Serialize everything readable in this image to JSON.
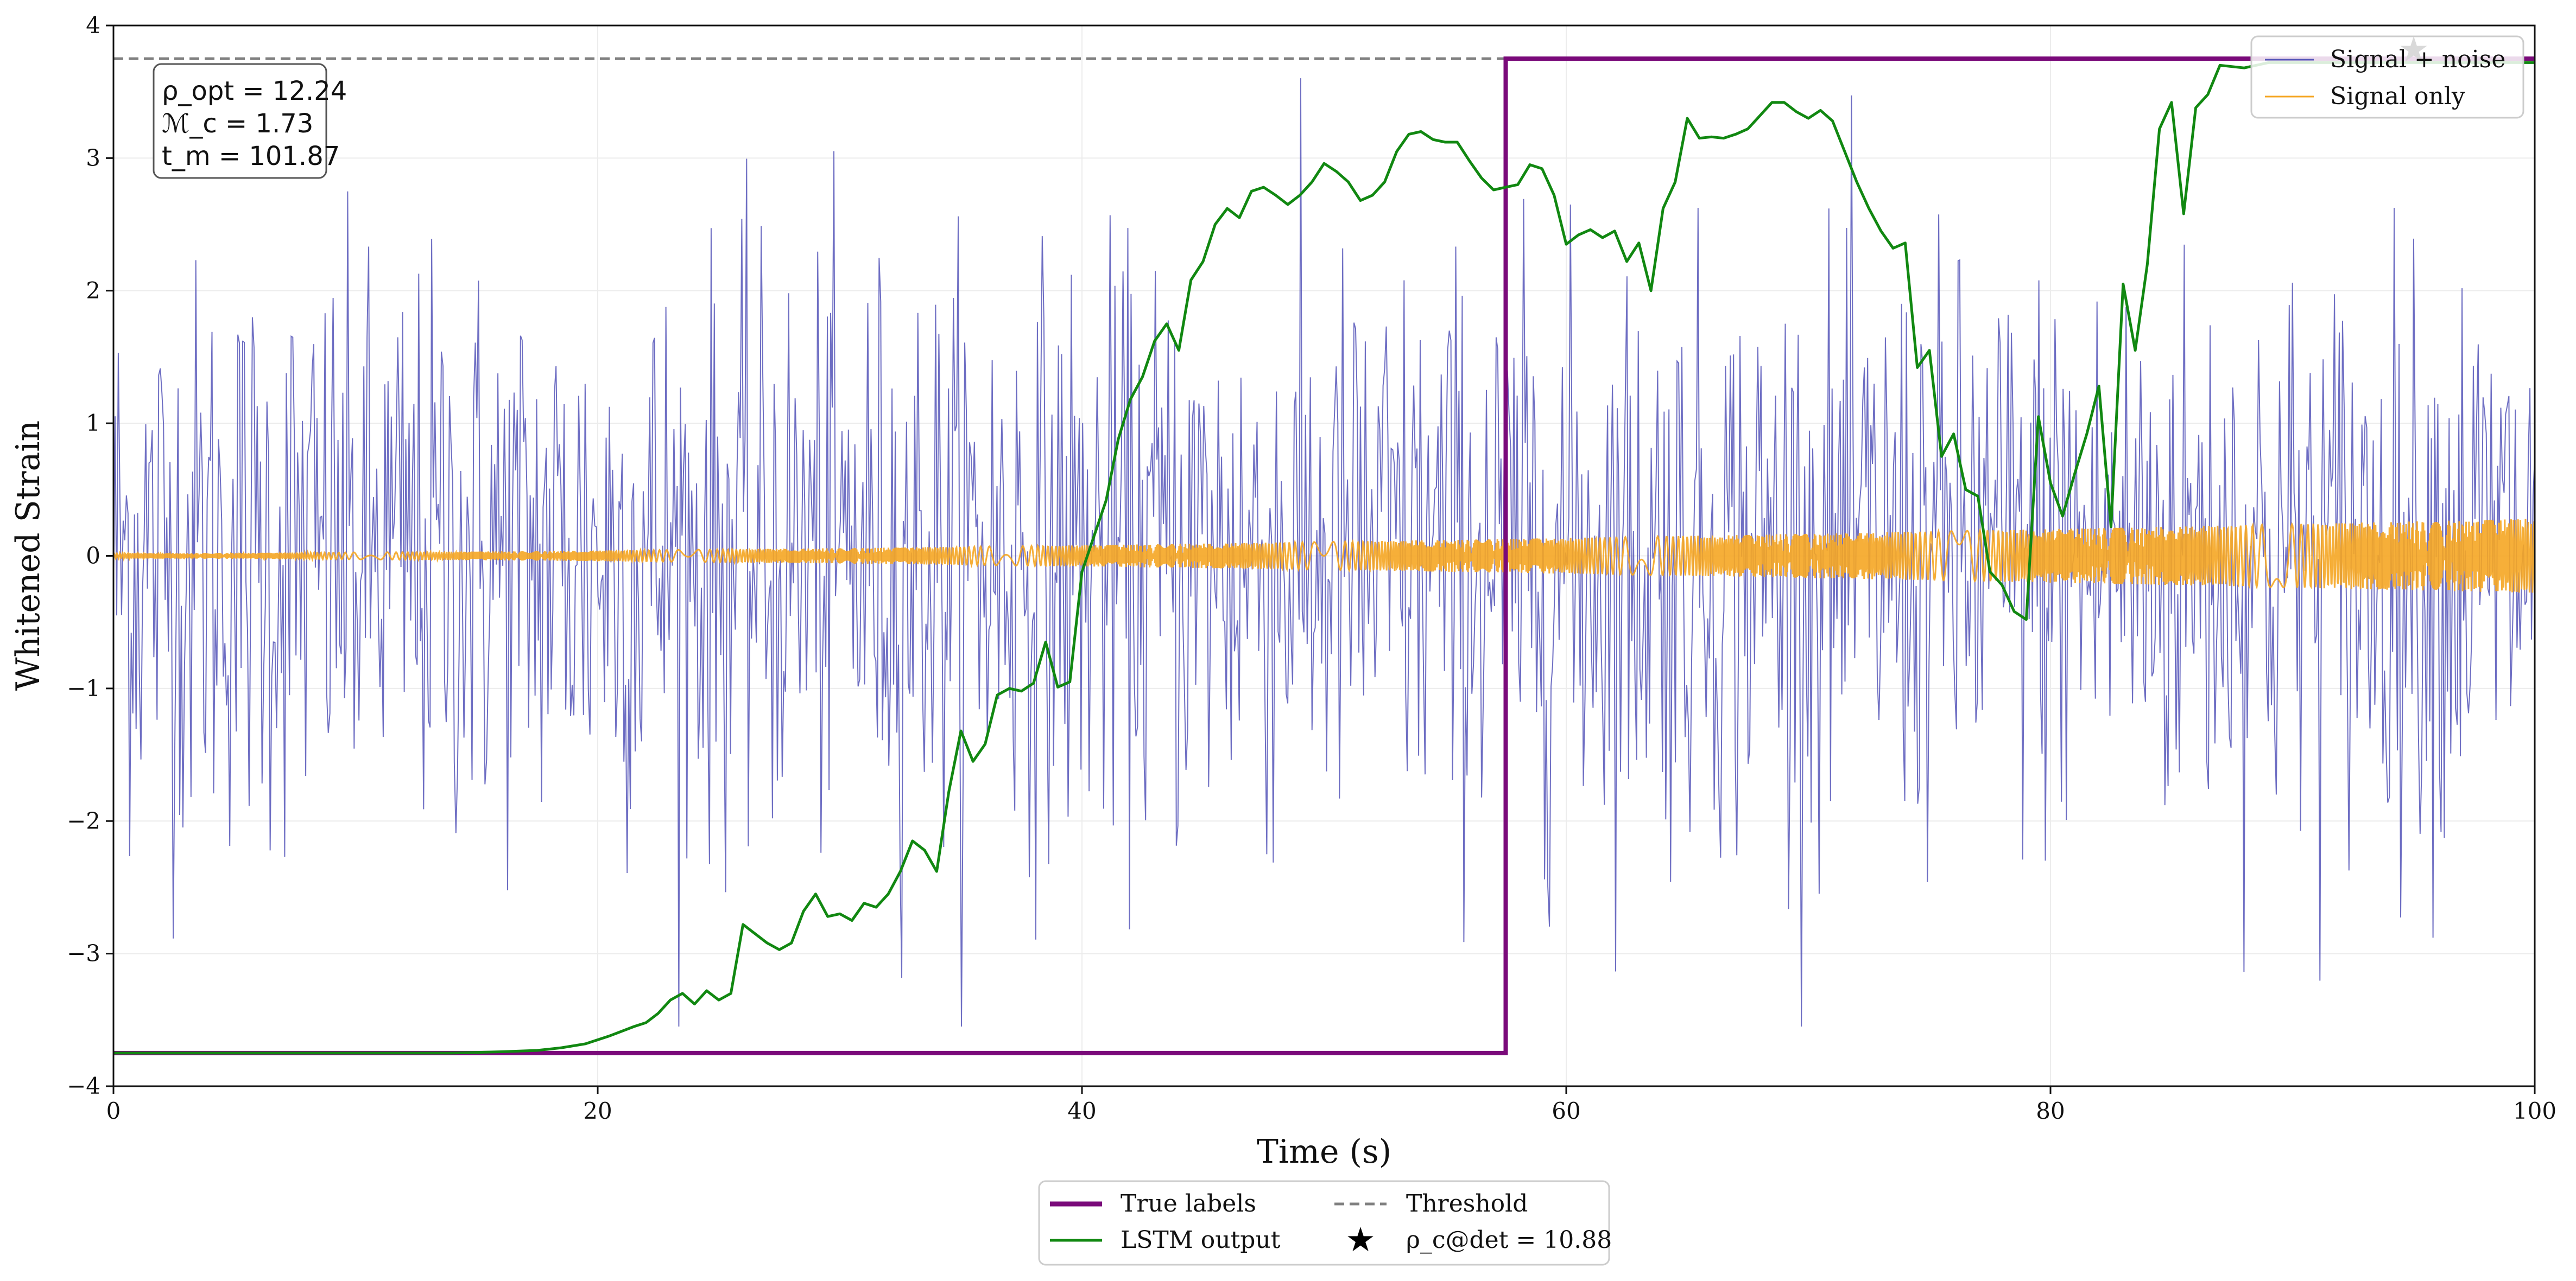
{
  "chart_data": {
    "type": "line",
    "title": "",
    "xlabel": "Time (s)",
    "ylabel": "Whitened Strain",
    "xlim": [
      0,
      100
    ],
    "ylim": [
      -4,
      4
    ],
    "xticks": [
      0,
      20,
      40,
      60,
      80,
      100
    ],
    "yticks": [
      -4,
      -3,
      -2,
      -1,
      0,
      1,
      2,
      3,
      4
    ],
    "ytick_labels": [
      "−4",
      "−3",
      "−2",
      "−1",
      "0",
      "1",
      "2",
      "3",
      "4"
    ],
    "grid": true,
    "colors": {
      "signal_noise": "#5555b8",
      "signal_only": "#f5a623",
      "true_labels": "#7a0a7a",
      "lstm": "#118811",
      "threshold": "#808080",
      "marker": "#000000"
    },
    "series": [
      {
        "name": "Signal + noise",
        "style": "thin line, dense noise",
        "noise_amplitude": 1.1,
        "peak_min": -3.55,
        "peak_max": 3.75,
        "n_samples": 1500
      },
      {
        "name": "Signal only",
        "style": "chirp, amplitude growing with time",
        "amplitude_start": 0.02,
        "amplitude_end": 0.28
      },
      {
        "name": "True labels",
        "x": [
          0,
          57.5,
          57.5,
          100
        ],
        "y": [
          -3.75,
          -3.75,
          3.75,
          3.75
        ]
      },
      {
        "name": "LSTM output",
        "x": [
          0,
          14,
          16,
          17.5,
          18.5,
          19.5,
          20.5,
          21.5,
          22,
          22.5,
          23,
          23.5,
          24,
          24.5,
          25,
          25.5,
          26,
          26.5,
          27,
          27.5,
          28,
          28.5,
          29,
          29.5,
          30,
          30.5,
          31,
          31.5,
          32,
          32.5,
          33,
          33.5,
          34,
          34.5,
          35,
          35.5,
          36,
          36.5,
          37,
          37.5,
          38,
          38.5,
          39,
          39.5,
          40,
          40.5,
          41,
          41.5,
          42,
          42.5,
          43,
          43.5,
          44,
          44.5,
          45,
          45.5,
          46,
          46.5,
          47,
          47.5,
          48,
          48.5,
          49,
          49.5,
          50,
          50.5,
          51,
          51.5,
          52,
          52.5,
          53,
          53.5,
          54,
          54.5,
          55,
          55.5,
          56,
          56.5,
          57,
          57.5,
          58,
          58.5,
          59,
          59.5,
          60,
          60.5,
          61,
          61.5,
          62,
          62.5,
          63,
          63.5,
          64,
          64.5,
          65,
          65.5,
          66,
          66.5,
          67,
          67.5,
          68,
          68.5,
          69,
          69.5,
          70,
          70.5,
          71,
          71.5,
          72,
          72.5,
          73,
          73.5,
          74,
          74.5,
          75,
          75.5,
          76,
          76.5,
          77,
          77.5,
          78,
          78.5,
          79,
          79.5,
          80,
          80.5,
          81,
          81.5,
          82,
          82.5,
          83,
          83.5,
          84,
          84.5,
          85,
          85.5,
          86,
          86.5,
          87,
          88,
          89,
          90,
          95,
          100
        ],
        "y": [
          -3.75,
          -3.75,
          -3.74,
          -3.73,
          -3.71,
          -3.68,
          -3.62,
          -3.55,
          -3.52,
          -3.45,
          -3.35,
          -3.3,
          -3.38,
          -3.28,
          -3.35,
          -3.3,
          -2.78,
          -2.85,
          -2.92,
          -2.97,
          -2.92,
          -2.68,
          -2.55,
          -2.72,
          -2.7,
          -2.75,
          -2.62,
          -2.65,
          -2.55,
          -2.38,
          -2.15,
          -2.22,
          -2.38,
          -1.78,
          -1.32,
          -1.55,
          -1.42,
          -1.05,
          -1.0,
          -1.02,
          -0.96,
          -0.65,
          -0.99,
          -0.95,
          -0.12,
          0.15,
          0.42,
          0.88,
          1.18,
          1.35,
          1.62,
          1.75,
          1.55,
          2.08,
          2.22,
          2.5,
          2.62,
          2.55,
          2.75,
          2.78,
          2.72,
          2.65,
          2.72,
          2.82,
          2.96,
          2.9,
          2.82,
          2.68,
          2.72,
          2.82,
          3.05,
          3.18,
          3.2,
          3.14,
          3.12,
          3.12,
          2.98,
          2.85,
          2.76,
          2.78,
          2.8,
          2.95,
          2.92,
          2.72,
          2.35,
          2.42,
          2.46,
          2.4,
          2.45,
          2.22,
          2.36,
          2.0,
          2.62,
          2.82,
          3.3,
          3.15,
          3.16,
          3.15,
          3.18,
          3.22,
          3.32,
          3.42,
          3.42,
          3.35,
          3.3,
          3.36,
          3.28,
          3.05,
          2.82,
          2.62,
          2.45,
          2.32,
          2.36,
          1.42,
          1.55,
          0.75,
          0.92,
          0.5,
          0.45,
          -0.12,
          -0.22,
          -0.42,
          -0.48,
          1.05,
          0.55,
          0.3,
          0.62,
          0.92,
          1.28,
          0.22,
          2.05,
          1.55,
          2.2,
          3.22,
          3.42,
          2.58,
          3.38,
          3.48,
          3.7,
          3.68,
          3.72,
          3.72,
          3.72,
          3.72
        ]
      },
      {
        "name": "Threshold",
        "y": 3.75
      }
    ],
    "marker": {
      "label": "ρ_c@det = 10.88",
      "x": 95,
      "y": 3.82
    },
    "annotation_lines": [
      "ρ_opt = 12.24",
      "ℳ_c = 1.73",
      "t_m = 101.87"
    ],
    "legend_upper": {
      "placement": "top-right",
      "entries": [
        "Signal + noise",
        "Signal only"
      ]
    },
    "legend_lower": {
      "placement": "bottom-center",
      "entries": [
        "True labels",
        "LSTM output",
        "Threshold",
        "ρ_c@det = 10.88"
      ]
    }
  }
}
